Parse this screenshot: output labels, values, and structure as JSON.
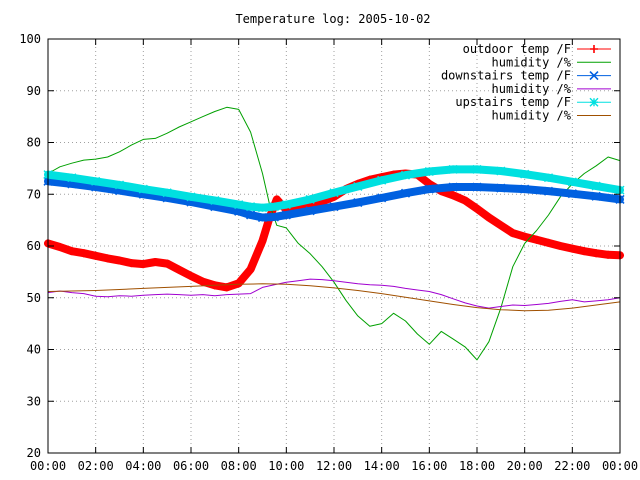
{
  "chart_data": {
    "type": "line",
    "title": "Temperature log: 2005-10-02",
    "xlabel": "",
    "ylabel": "",
    "xlim": [
      0,
      24
    ],
    "ylim": [
      20,
      100
    ],
    "grid": true,
    "legend_position": "top-right",
    "x_ticks": [
      "00:00",
      "02:00",
      "04:00",
      "06:00",
      "08:00",
      "10:00",
      "12:00",
      "14:00",
      "16:00",
      "18:00",
      "20:00",
      "22:00",
      "00:00"
    ],
    "y_ticks": [
      20,
      30,
      40,
      50,
      60,
      70,
      80,
      90,
      100
    ],
    "series": [
      {
        "name": "outdoor temp /F",
        "color": "#ff0000",
        "marker": "plus",
        "x": [
          0,
          0.5,
          1,
          1.5,
          2,
          2.5,
          3,
          3.5,
          4,
          4.5,
          5,
          5.5,
          6,
          6.5,
          7,
          7.5,
          8,
          8.5,
          9,
          9.3,
          9.6,
          10,
          10.5,
          11,
          11.5,
          12,
          12.5,
          13,
          13.5,
          14,
          14.5,
          15,
          15.5,
          16,
          16.5,
          17,
          17.5,
          18,
          18.5,
          19,
          19.5,
          20,
          20.5,
          21,
          21.5,
          22,
          22.5,
          23,
          23.5,
          24
        ],
        "y": [
          60.5,
          59.8,
          59.0,
          58.6,
          58.1,
          57.6,
          57.2,
          56.7,
          56.5,
          56.9,
          56.6,
          55.4,
          54.2,
          53.1,
          52.4,
          52.0,
          52.8,
          55.5,
          61.0,
          65.5,
          69.0,
          67.0,
          67.3,
          67.8,
          68.6,
          69.5,
          71.0,
          72.0,
          72.8,
          73.3,
          73.8,
          74.0,
          73.8,
          72.0,
          70.6,
          69.8,
          68.8,
          67.2,
          65.5,
          64.0,
          62.5,
          61.8,
          61.2,
          60.6,
          60.0,
          59.5,
          59.0,
          58.6,
          58.3,
          58.2
        ]
      },
      {
        "name": "humidity /%",
        "color": "#00a000",
        "marker": "none",
        "x": [
          0,
          0.5,
          1,
          1.5,
          2,
          2.5,
          3,
          3.5,
          4,
          4.5,
          5,
          5.5,
          6,
          6.5,
          7,
          7.5,
          8,
          8.5,
          9,
          9.3,
          9.6,
          10,
          10.5,
          11,
          11.5,
          12,
          12.5,
          13,
          13.5,
          14,
          14.5,
          15,
          15.5,
          16,
          16.5,
          17,
          17.5,
          18,
          18.5,
          19,
          19.5,
          20,
          20.5,
          21,
          21.5,
          22,
          22.5,
          23,
          23.5,
          24
        ],
        "y": [
          74.0,
          75.3,
          76.0,
          76.6,
          76.8,
          77.2,
          78.2,
          79.5,
          80.6,
          80.8,
          81.8,
          83.0,
          84.0,
          85.0,
          86.0,
          86.8,
          86.4,
          82.0,
          74.0,
          68.0,
          64.0,
          63.5,
          60.5,
          58.5,
          56.0,
          53.0,
          49.5,
          46.5,
          44.5,
          45.0,
          47.0,
          45.5,
          43.0,
          41.0,
          43.5,
          42.0,
          40.5,
          38.0,
          41.5,
          48.0,
          56.0,
          60.5,
          63.0,
          66.0,
          69.5,
          72.0,
          74.0,
          75.5,
          77.2,
          76.5
        ]
      },
      {
        "name": "downstairs temp /F",
        "color": "#0060e0",
        "marker": "cross",
        "x": [
          0,
          1,
          2,
          3,
          4,
          5,
          6,
          7,
          8,
          8.5,
          9,
          9.5,
          10,
          11,
          12,
          13,
          14,
          15,
          16,
          17,
          18,
          19,
          20,
          21,
          22,
          23,
          24
        ],
        "y": [
          72.5,
          72.0,
          71.4,
          70.7,
          70.0,
          69.3,
          68.5,
          67.6,
          66.7,
          66.0,
          65.5,
          65.6,
          66.0,
          66.8,
          67.6,
          68.4,
          69.3,
          70.2,
          71.0,
          71.4,
          71.4,
          71.2,
          71.0,
          70.6,
          70.1,
          69.6,
          69.0
        ]
      },
      {
        "name": "humidity /%",
        "color": "#a000d0",
        "marker": "none",
        "x": [
          0,
          0.5,
          1,
          1.5,
          2,
          2.5,
          3,
          3.5,
          4,
          4.5,
          5,
          5.5,
          6,
          6.5,
          7,
          7.5,
          8,
          8.5,
          9,
          9.5,
          10,
          10.5,
          11,
          11.5,
          12,
          12.5,
          13,
          13.5,
          14,
          14.5,
          15,
          15.5,
          16,
          16.5,
          17,
          17.5,
          18,
          18.5,
          19,
          19.5,
          20,
          20.5,
          21,
          21.5,
          22,
          22.5,
          23,
          23.5,
          24
        ],
        "y": [
          51.0,
          51.3,
          51.0,
          50.8,
          50.3,
          50.2,
          50.4,
          50.3,
          50.5,
          50.6,
          50.7,
          50.6,
          50.5,
          50.6,
          50.4,
          50.6,
          50.7,
          50.8,
          52.0,
          52.5,
          53.0,
          53.3,
          53.6,
          53.5,
          53.3,
          53.0,
          52.7,
          52.5,
          52.4,
          52.2,
          51.8,
          51.5,
          51.2,
          50.6,
          49.8,
          49.0,
          48.4,
          48.0,
          48.3,
          48.6,
          48.5,
          48.7,
          48.9,
          49.3,
          49.6,
          49.2,
          49.4,
          49.6,
          50.0
        ]
      },
      {
        "name": "upstairs temp /F",
        "color": "#00e0e0",
        "marker": "star",
        "x": [
          0,
          1,
          2,
          3,
          4,
          5,
          6,
          7,
          8,
          8.5,
          9,
          9.5,
          10,
          11,
          12,
          13,
          14,
          15,
          16,
          17,
          18,
          19,
          20,
          21,
          22,
          23,
          24
        ],
        "y": [
          73.8,
          73.2,
          72.5,
          71.8,
          71.0,
          70.3,
          69.5,
          68.8,
          68.0,
          67.6,
          67.4,
          67.6,
          68.0,
          69.0,
          70.3,
          71.5,
          72.7,
          73.7,
          74.4,
          74.8,
          74.8,
          74.5,
          73.9,
          73.2,
          72.4,
          71.6,
          70.8
        ]
      },
      {
        "name": "humidity /%",
        "color": "#a05000",
        "marker": "none",
        "x": [
          0,
          1,
          2,
          3,
          4,
          5,
          6,
          7,
          8,
          9,
          10,
          11,
          12,
          13,
          14,
          15,
          16,
          17,
          18,
          19,
          20,
          21,
          22,
          23,
          24
        ],
        "y": [
          51.2,
          51.3,
          51.4,
          51.6,
          51.8,
          52.0,
          52.2,
          52.4,
          52.6,
          52.7,
          52.6,
          52.3,
          51.9,
          51.4,
          50.8,
          50.1,
          49.4,
          48.7,
          48.1,
          47.7,
          47.5,
          47.6,
          48.0,
          48.6,
          49.2
        ]
      }
    ]
  }
}
